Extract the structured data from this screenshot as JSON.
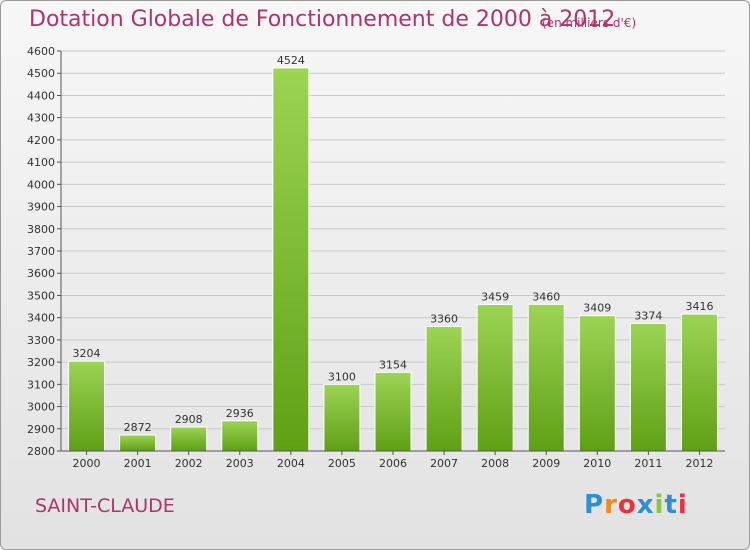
{
  "header": {
    "title": "Dotation Globale de Fonctionnement de 2000 à 2012",
    "unit": "(en milliers d'€)"
  },
  "footer": {
    "commune": "SAINT-CLAUDE",
    "logo_text": "Proxiti",
    "logo_colors": [
      "#2f8fd6",
      "#f08a1c",
      "#e8323c",
      "#2f8fd6",
      "#8cc63f",
      "#2f8fd6",
      "#e8323c"
    ]
  },
  "colors": {
    "bar_top": "#9cd454",
    "bar_bottom": "#5fa015",
    "grid": "#c8c8c8",
    "axis": "#555555",
    "text": "#333333"
  },
  "chart_data": {
    "type": "bar",
    "title": "Dotation Globale de Fonctionnement de 2000 à 2012",
    "categories": [
      "2000",
      "2001",
      "2002",
      "2003",
      "2004",
      "2005",
      "2006",
      "2007",
      "2008",
      "2009",
      "2010",
      "2011",
      "2012"
    ],
    "values": [
      3204,
      2872,
      2908,
      2936,
      4524,
      3100,
      3154,
      3360,
      3459,
      3460,
      3409,
      3374,
      3416
    ],
    "ylim": [
      2800,
      4600
    ],
    "yticks": [
      2800,
      2900,
      3000,
      3100,
      3200,
      3300,
      3400,
      3500,
      3600,
      3700,
      3800,
      3900,
      4000,
      4100,
      4200,
      4300,
      4400,
      4500,
      4600
    ],
    "grid": true,
    "data_labels": true
  }
}
